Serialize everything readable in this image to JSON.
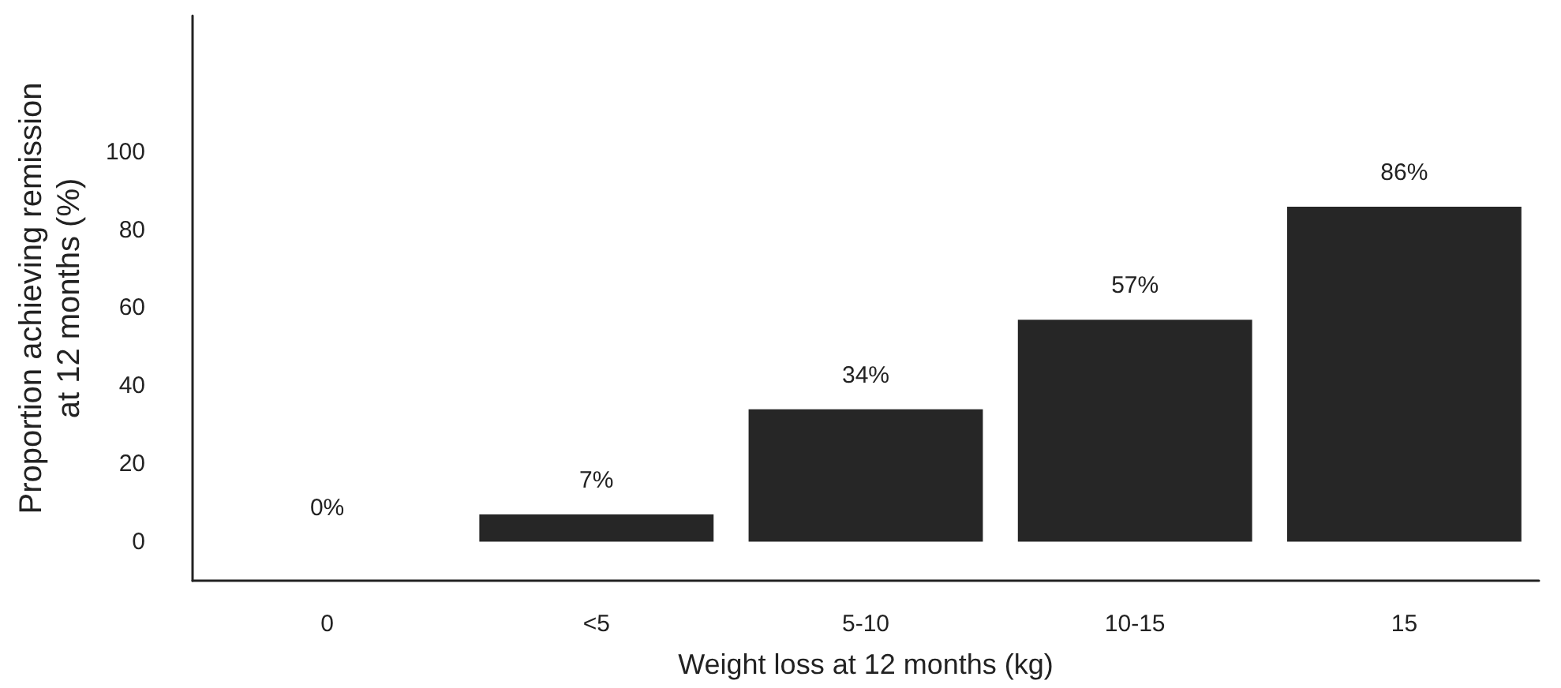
{
  "chart_data": {
    "type": "bar",
    "xlabel": "Weight loss at 12 months (kg)",
    "ylabel": "Proportion achieving remission at 12 months (%)",
    "categories": [
      "0",
      "<5",
      "5-10",
      "10-15",
      "15"
    ],
    "values": [
      0,
      7,
      34,
      57,
      86
    ],
    "value_labels": [
      "0%",
      "7%",
      "34%",
      "57%",
      "86%"
    ],
    "color": "#262626",
    "ylim": [
      -10,
      135
    ],
    "yticks": [
      0,
      20,
      40,
      60,
      80,
      100
    ],
    "grid": false
  }
}
